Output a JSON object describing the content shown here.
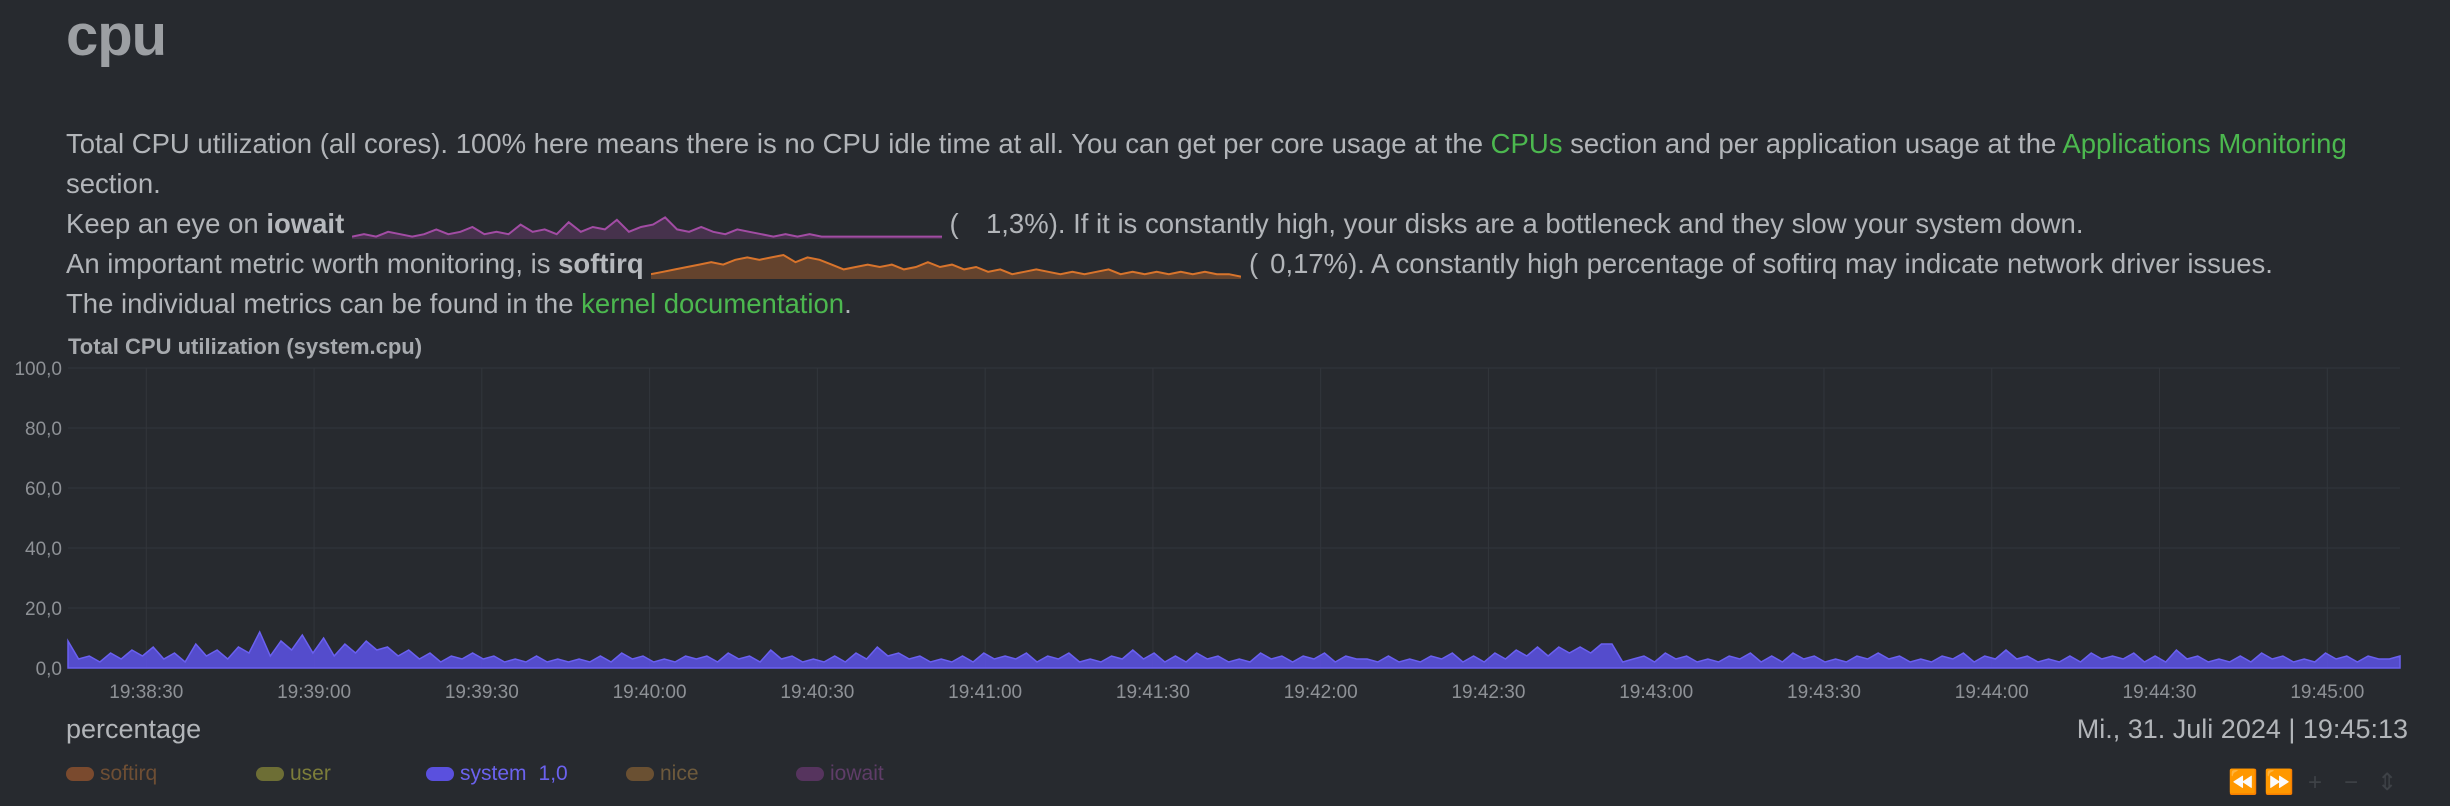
{
  "section_title": "cpu",
  "description": {
    "line1_a": "Total CPU utilization (all cores). 100% here means there is no CPU idle time at all. You can get per core usage at the ",
    "link_cpus": "CPUs",
    "line1_b": " section and per application usage at the ",
    "link_apps": "Applications Monitoring",
    "line1_c": " section.",
    "iowait_a": "Keep an eye on ",
    "iowait_b": "iowait",
    "iowait_open": " (",
    "iowait_pct": "1,3%",
    "iowait_c": "). If it is constantly high, your disks are a bottleneck and they slow your system down.",
    "softirq_a": "An important metric worth monitoring, is ",
    "softirq_b": "softirq",
    "softirq_open": " (",
    "softirq_pct": "0,17%",
    "softirq_c": "). A constantly high percentage of softirq may indicate network driver issues.",
    "kernel_a": "The individual metrics can be found in the ",
    "link_kernel": "kernel documentation",
    "kernel_b": "."
  },
  "colors": {
    "link": "#4cb84f",
    "system": "#5a50de",
    "iowait": "#a24ca4",
    "softirq": "#d8742c",
    "user": "#7c7d3a",
    "nice": "#7a5a35"
  },
  "chart_data": {
    "type": "area",
    "title": "Total CPU utilization (system.cpu)",
    "ylabel": "percentage",
    "ylim": [
      0,
      100
    ],
    "yticks": [
      "100,0",
      "80,0",
      "60,0",
      "40,0",
      "20,0",
      "0,0"
    ],
    "xticks": [
      "19:38:30",
      "19:39:00",
      "19:39:30",
      "19:40:00",
      "19:40:30",
      "19:41:00",
      "19:41:30",
      "19:42:00",
      "19:42:30",
      "19:43:00",
      "19:43:30",
      "19:44:00",
      "19:44:30",
      "19:45:00"
    ],
    "x_start": "19:38:16",
    "x_end": "19:45:13",
    "grid": true,
    "series": [
      {
        "name": "system",
        "values": [
          9,
          3,
          4,
          2,
          5,
          3,
          6,
          4,
          7,
          3,
          5,
          2,
          8,
          4,
          6,
          3,
          7,
          5,
          12,
          4,
          9,
          6,
          11,
          5,
          10,
          4,
          8,
          5,
          9,
          6,
          7,
          4,
          6,
          3,
          5,
          2,
          4,
          3,
          5,
          3,
          4,
          2,
          3,
          2,
          4,
          2,
          3,
          2,
          3,
          2,
          4,
          2,
          5,
          3,
          4,
          2,
          3,
          2,
          4,
          3,
          4,
          2,
          5,
          3,
          4,
          2,
          6,
          3,
          4,
          2,
          3,
          2,
          4,
          2,
          5,
          3,
          7,
          4,
          5,
          3,
          4,
          2,
          3,
          2,
          4,
          2,
          5,
          3,
          4,
          3,
          5,
          2,
          4,
          3,
          5,
          2,
          3,
          2,
          4,
          3,
          6,
          3,
          5,
          2,
          4,
          2,
          5,
          3,
          4,
          2,
          3,
          2,
          5,
          3,
          4,
          2,
          4,
          3,
          5,
          2,
          4,
          3,
          3,
          2,
          4,
          2,
          3,
          2,
          4,
          3,
          5,
          2,
          4,
          2,
          5,
          3,
          6,
          4,
          7,
          4,
          7,
          5,
          7,
          5,
          8,
          8,
          2,
          3,
          4,
          2,
          5,
          3,
          4,
          2,
          3,
          2,
          4,
          3,
          5,
          2,
          4,
          2,
          5,
          3,
          4,
          2,
          3,
          2,
          4,
          3,
          5,
          3,
          4,
          2,
          3,
          2,
          4,
          3,
          5,
          2,
          4,
          3,
          6,
          3,
          4,
          2,
          3,
          2,
          4,
          2,
          5,
          3,
          4,
          3,
          5,
          2,
          4,
          2,
          6,
          3,
          4,
          2,
          3,
          2,
          4,
          2,
          5,
          3,
          4,
          2,
          3,
          2,
          5,
          3,
          4,
          2,
          4,
          3,
          3,
          4
        ]
      }
    ],
    "iowait_spark": [
      1,
      2,
      1,
      3,
      2,
      1,
      2,
      4,
      2,
      3,
      5,
      2,
      3,
      2,
      6,
      3,
      4,
      2,
      7,
      3,
      5,
      4,
      8,
      3,
      5,
      6,
      9,
      4,
      3,
      5,
      3,
      2,
      4,
      3,
      2,
      1,
      2,
      1,
      2,
      1,
      1,
      1,
      1,
      1,
      1,
      1,
      1,
      1,
      1,
      1
    ],
    "softirq_spark": [
      2,
      3,
      4,
      5,
      6,
      7,
      6,
      8,
      9,
      8,
      9,
      10,
      7,
      9,
      8,
      6,
      4,
      5,
      6,
      5,
      6,
      4,
      5,
      7,
      5,
      6,
      4,
      5,
      3,
      4,
      2,
      3,
      4,
      3,
      2,
      3,
      2,
      3,
      4,
      2,
      3,
      2,
      3,
      2,
      3,
      2,
      3,
      2,
      2,
      1
    ]
  },
  "units_label": "percentage",
  "datetime": "Mi., 31. Juli 2024 | 19:45:13",
  "legend": [
    {
      "name": "softirq",
      "value": "",
      "color": "#7a4a2e",
      "text_color": "#6e4e34"
    },
    {
      "name": "user",
      "value": "",
      "color": "#6d6e35",
      "text_color": "#7c7d3a"
    },
    {
      "name": "system",
      "value": "1,0",
      "color": "#5a50de",
      "text_color": "#6b62ee"
    },
    {
      "name": "nice",
      "value": "",
      "color": "#6a5032",
      "text_color": "#6e5a3c"
    },
    {
      "name": "iowait",
      "value": "",
      "color": "#56345e",
      "text_color": "#5f3d68"
    }
  ],
  "toolbar": {
    "pan_left_icon": "⏪",
    "pan_right_icon": "⏩",
    "zoom_in_icon": "+",
    "zoom_out_icon": "−",
    "resize_icon": "⇕"
  }
}
